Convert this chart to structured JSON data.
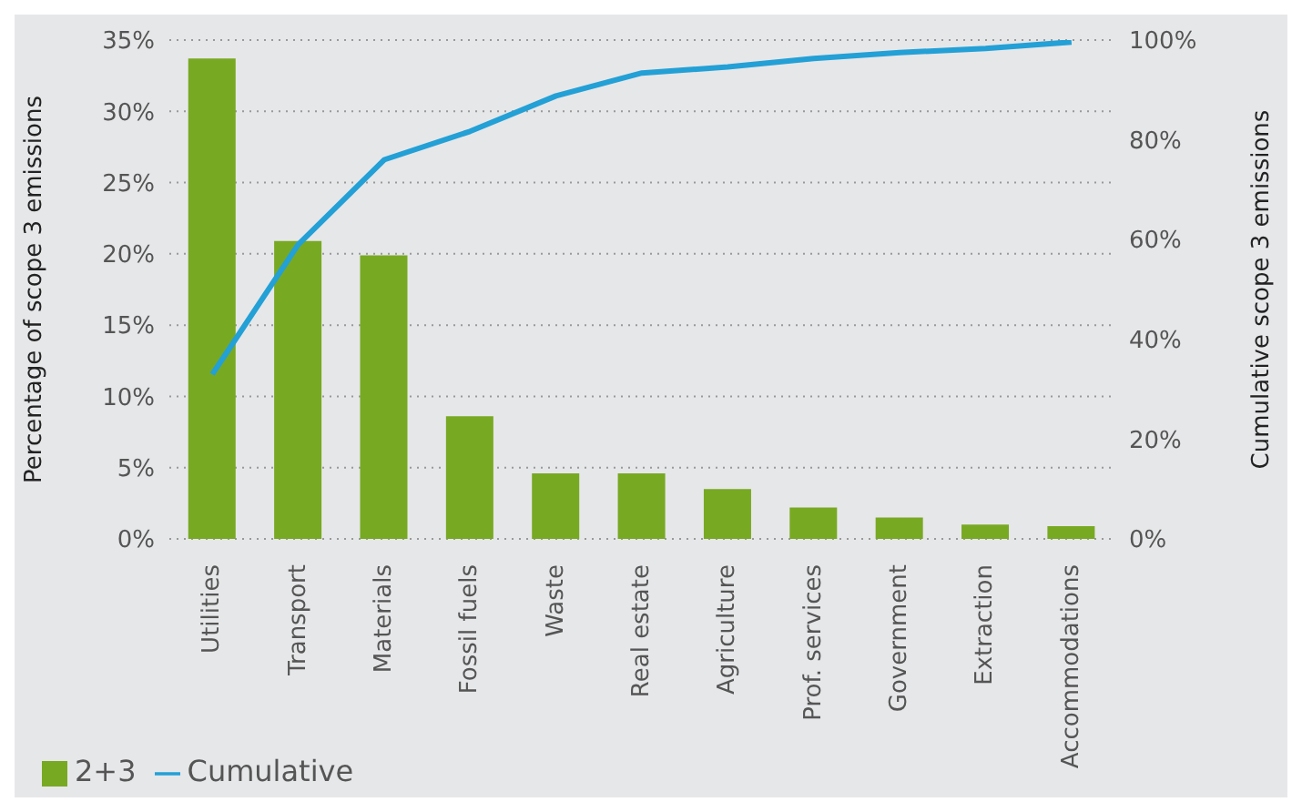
{
  "chart_data": {
    "type": "bar",
    "ylabel": "Percentage of scope 3 emissions",
    "y2label": "Cumulative scope 3 emissions",
    "categories": [
      "Utilities",
      "Transport",
      "Materials",
      "Fossil fuels",
      "Waste",
      "Real estate",
      "Agriculture",
      "Prof. services",
      "Government",
      "Extraction",
      "Accommodations"
    ],
    "series": [
      {
        "name": "2+3",
        "color": "#78a922",
        "values": [
          33.7,
          20.9,
          19.9,
          8.6,
          4.6,
          4.6,
          3.5,
          2.2,
          1.5,
          1.0,
          0.9
        ]
      },
      {
        "name": "Cumulative",
        "type": "line",
        "axis": "y2",
        "color": "#23a0d6",
        "values": [
          33,
          59,
          76,
          81.7,
          88.8,
          93.4,
          94.6,
          96.3,
          97.5,
          98.3,
          99.6
        ]
      }
    ],
    "ylim": [
      0,
      35
    ],
    "yticks": [
      {
        "value": 0,
        "label": "0%"
      },
      {
        "value": 5,
        "label": "5%"
      },
      {
        "value": 10,
        "label": "10%"
      },
      {
        "value": 15,
        "label": "15%"
      },
      {
        "value": 20,
        "label": "20%"
      },
      {
        "value": 25,
        "label": "25%"
      },
      {
        "value": 30,
        "label": "30%"
      },
      {
        "value": 35,
        "label": "35%"
      }
    ],
    "y2lim": [
      0,
      100
    ],
    "y2ticks": [
      {
        "value": 0,
        "label": "0%"
      },
      {
        "value": 20,
        "label": "20%"
      },
      {
        "value": 40,
        "label": "40%"
      },
      {
        "value": 60,
        "label": "60%"
      },
      {
        "value": 80,
        "label": "80%"
      },
      {
        "value": 100,
        "label": "100%"
      }
    ],
    "grid": "y",
    "legend": "bottom left"
  }
}
